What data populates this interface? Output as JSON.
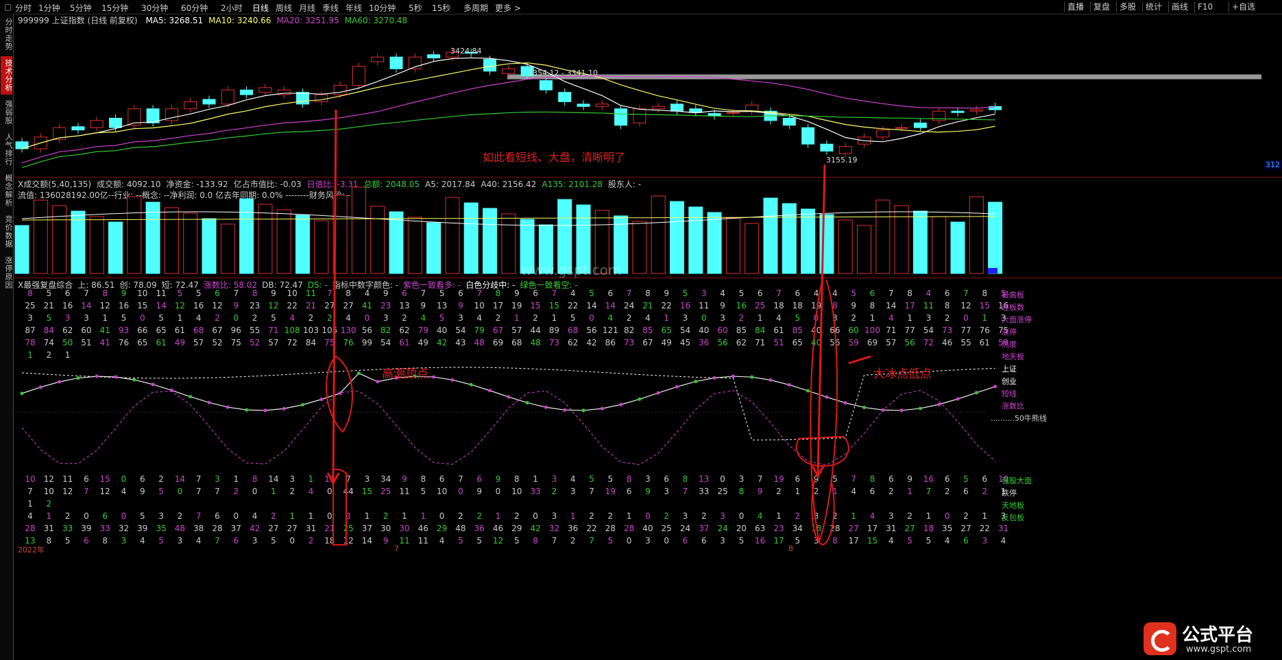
{
  "toolbar": {
    "timeframes": [
      "分时",
      "1分钟",
      "5分钟",
      "15分钟",
      "30分钟",
      "60分钟",
      "2小时",
      "日线",
      "周线",
      "月线",
      "季线",
      "年线",
      "10分钟",
      "5秒",
      "15秒",
      "多周期",
      "更多 >"
    ],
    "active": "日线",
    "right_buttons": [
      "直播",
      "复盘",
      "多股",
      "统计",
      "画线",
      "F10",
      "+自选"
    ]
  },
  "sidebar": {
    "tabs": [
      "分时走势",
      "技术分析",
      "强弱股",
      "人气排行",
      "概念解析",
      "竞价数据",
      "涨停原因"
    ],
    "active": "技术分析"
  },
  "main_chart": {
    "title": "999999 上证指数 (日线 前复权)",
    "ma": [
      {
        "label": "MA5: 3268.51",
        "color": "#ffffff"
      },
      {
        "label": "MA10: 3240.66",
        "color": "#ffff66"
      },
      {
        "label": "MA20: 3251.95",
        "color": "#cc44cc"
      },
      {
        "label": "MA60: 3270.48",
        "color": "#33cc33"
      }
    ],
    "annotations": {
      "high": "3424.84",
      "mid": "3354.12 - 3341.10",
      "low": "3155.19",
      "note": "如此看短线、大盘，清晰明了",
      "right_tag": "312"
    }
  },
  "volume_chart": {
    "line1": [
      {
        "text": "X成交额(5,40,135)",
        "color": "#cccccc"
      },
      {
        "text": "成交额: 4092.10",
        "color": "#cccccc"
      },
      {
        "text": "净资金: -133.92",
        "color": "#cccccc"
      },
      {
        "text": "亿占市值比: -0.03",
        "color": "#cccccc"
      },
      {
        "text": "日值比: -3.31",
        "color": "#cc44cc"
      },
      {
        "text": "总额: 2048.05",
        "color": "#33cc33"
      },
      {
        "text": "A5: 2017.84",
        "color": "#cccccc"
      },
      {
        "text": "A40: 2156.42",
        "color": "#cccccc"
      },
      {
        "text": "A135: 2101.28",
        "color": "#33cc33"
      },
      {
        "text": "股东人: -",
        "color": "#cccccc"
      }
    ],
    "line2": "流值: 136028192.00亿--行业: --概念: --净利润: 0.0 亿去年同期: 0.0% --------财务风险: -",
    "watermark": "www.gspt.com"
  },
  "indicator": {
    "legend": [
      {
        "text": "X最强复盘综合",
        "color": "#cccccc"
      },
      {
        "text": "上: 86.51",
        "color": "#cccccc"
      },
      {
        "text": "创: 78.09",
        "color": "#cccccc"
      },
      {
        "text": "短: 72.47",
        "color": "#cccccc"
      },
      {
        "text": "涨数比: 58.02",
        "color": "#cc44cc"
      },
      {
        "text": "DB: 72.47",
        "color": "#cccccc"
      },
      {
        "text": "DS: -",
        "color": "#33cc33"
      },
      {
        "text": "指标中数字颜色: -",
        "color": "#cccccc"
      },
      {
        "text": "紫色一致看多: -",
        "color": "#cc44cc"
      },
      {
        "text": "白色分歧中: -",
        "color": "#ffffff"
      },
      {
        "text": "绿色一致看空: -",
        "color": "#33cc33"
      }
    ],
    "top_rows": [
      {
        "label": "最高板",
        "color": "#cc44cc",
        "values": [
          "8",
          "5",
          "6",
          "7",
          "8",
          "9",
          "10",
          "11",
          "5",
          "5",
          "6",
          "7",
          "8",
          "9",
          "10",
          "11",
          "7",
          "8",
          "4",
          "9",
          "6",
          "7",
          "5",
          "6",
          "7",
          "8",
          "9",
          "6",
          "7",
          "4",
          "5",
          "6",
          "7",
          "8",
          "9",
          "5",
          "3",
          "4",
          "5",
          "6",
          "7",
          "6",
          "4",
          "4",
          "5",
          "6",
          "7",
          "8",
          "4",
          "6",
          "7",
          "8",
          "5"
        ]
      },
      {
        "label": "连板数",
        "color": "#cc44cc",
        "values": [
          "25",
          "21",
          "16",
          "14",
          "12",
          "16",
          "15",
          "14",
          "12",
          "16",
          "12",
          "9",
          "23",
          "12",
          "22",
          "21",
          "27",
          "27",
          "41",
          "23",
          "13",
          "9",
          "13",
          "9",
          "10",
          "17",
          "19",
          "15",
          "15",
          "22",
          "14",
          "14",
          "24",
          "21",
          "22",
          "16",
          "11",
          "9",
          "16",
          "25",
          "18",
          "18",
          "19",
          "8",
          "9",
          "8",
          "14",
          "17",
          "11",
          "8",
          "12",
          "15",
          "16"
        ]
      },
      {
        "label": "大面涨停",
        "color": "#cc44cc",
        "values": [
          "3",
          "5",
          "3",
          "3",
          "1",
          "5",
          "0",
          "5",
          "1",
          "4",
          "2",
          "0",
          "2",
          "5",
          "4",
          "2",
          "2",
          "4",
          "0",
          "3",
          "2",
          "4",
          "5",
          "3",
          "4",
          "2",
          "1",
          "2",
          "1",
          "5",
          "0",
          "4",
          "2",
          "4",
          "1",
          "3",
          "0",
          "3",
          "2",
          "1",
          "4",
          "5",
          "0",
          "3",
          "2",
          "1",
          "4",
          "1",
          "3",
          "2",
          "0",
          "1",
          "3"
        ]
      },
      {
        "label": "涨停",
        "color": "#cc44cc",
        "values": [
          "87",
          "84",
          "62",
          "60",
          "41",
          "93",
          "66",
          "65",
          "61",
          "68",
          "67",
          "96",
          "55",
          "71",
          "108",
          "103",
          "105",
          "130",
          "56",
          "82",
          "62",
          "79",
          "40",
          "54",
          "79",
          "67",
          "57",
          "44",
          "89",
          "68",
          "56",
          "121",
          "82",
          "85",
          "65",
          "54",
          "40",
          "60",
          "85",
          "84",
          "61",
          "85",
          "40",
          "66",
          "60",
          "100",
          "71",
          "77",
          "54",
          "73",
          "77",
          "76",
          "75"
        ]
      },
      {
        "label": "热度",
        "color": "#cc44cc",
        "values": [
          "78",
          "74",
          "50",
          "51",
          "41",
          "76",
          "65",
          "61",
          "49",
          "57",
          "52",
          "75",
          "52",
          "57",
          "72",
          "84",
          "75",
          "76",
          "99",
          "54",
          "61",
          "49",
          "42",
          "43",
          "48",
          "69",
          "68",
          "48",
          "73",
          "62",
          "42",
          "86",
          "73",
          "67",
          "49",
          "45",
          "36",
          "56",
          "62",
          "71",
          "51",
          "65",
          "40",
          "56",
          "59",
          "69",
          "57",
          "56",
          "72",
          "46",
          "55",
          "61",
          "59"
        ]
      },
      {
        "label": "地天板",
        "color": "#cc44cc",
        "values": [
          "1",
          "2",
          "1",
          "",
          "",
          "",
          "",
          "",
          "",
          "",
          "",
          "",
          "",
          "",
          "",
          "",
          "",
          "",
          "",
          "",
          "",
          "",
          "",
          "",
          "",
          "",
          "",
          "",
          "",
          "",
          "",
          "",
          "",
          "",
          "",
          "",
          "",
          "",
          "",
          "",
          "",
          "",
          "",
          "",
          "",
          "",
          "",
          "",
          "",
          "",
          "",
          "",
          ""
        ]
      }
    ],
    "line_labels": [
      {
        "text": "上证",
        "color": "#ffffff"
      },
      {
        "text": "创业",
        "color": "#ffffff"
      },
      {
        "text": "短线",
        "color": "#cc44cc"
      },
      {
        "text": "涨数比",
        "color": "#cc44cc"
      },
      {
        "text": "..........50牛熊线",
        "color": "#cccccc"
      }
    ],
    "annotation_high": "高潮顶点",
    "annotation_low": "大冰点低点",
    "bottom_rows": [
      {
        "label": "强股大面",
        "color": "#33cc33",
        "values": [
          "10",
          "12",
          "11",
          "6",
          "15",
          "0",
          "6",
          "2",
          "14",
          "7",
          "3",
          "1",
          "8",
          "14",
          "3",
          "1",
          "11",
          "7",
          "3",
          "34",
          "9",
          "8",
          "6",
          "7",
          "6",
          "9",
          "8",
          "1",
          "3",
          "4",
          "5",
          "5",
          "8",
          "3",
          "6",
          "8",
          "13",
          "0",
          "3",
          "7",
          "19",
          "6",
          "9",
          "5",
          "7",
          "8",
          "6",
          "9",
          "16",
          "6",
          "5",
          "6",
          "10"
        ]
      },
      {
        "label": "跌停",
        "color": "#cccccc",
        "values": [
          "7",
          "10",
          "12",
          "7",
          "12",
          "4",
          "9",
          "5",
          "0",
          "7",
          "7",
          "2",
          "0",
          "1",
          "2",
          "4",
          "0",
          "44",
          "15",
          "25",
          "11",
          "5",
          "10",
          "0",
          "9",
          "0",
          "10",
          "33",
          "2",
          "3",
          "7",
          "19",
          "6",
          "9",
          "3",
          "7",
          "33",
          "25",
          "8",
          "9",
          "2",
          "1",
          "2",
          "1",
          "4",
          "6",
          "2",
          "1",
          "7",
          "2",
          "6",
          "2",
          "1"
        ]
      },
      {
        "label": "天地板",
        "color": "#33cc33",
        "values": [
          "1",
          "2",
          "",
          "",
          "",
          "",
          "",
          "",
          "",
          "",
          "",
          "",
          "",
          "",
          "",
          "",
          "",
          "",
          "",
          "",
          "",
          "",
          "",
          "",
          "",
          "",
          "",
          "",
          "",
          "",
          "",
          "",
          "",
          "",
          "",
          "",
          "",
          "",
          "",
          "",
          "",
          "",
          "",
          "",
          "",
          "",
          "",
          "",
          "",
          "",
          "",
          "",
          ""
        ]
      },
      {
        "label": "反包板",
        "color": "#33cc33",
        "values": [
          "4",
          "1",
          "2",
          "0",
          "6",
          "0",
          "5",
          "3",
          "2",
          "7",
          "6",
          "0",
          "4",
          "2",
          "1",
          "1",
          "0",
          "3",
          "1",
          "2",
          "1",
          "1",
          "0",
          "2",
          "2",
          "1",
          "2",
          "0",
          "3",
          "1",
          "2",
          "2",
          "1",
          "0",
          "2",
          "3",
          "2",
          "3",
          "0",
          "4",
          "1",
          "2",
          "3",
          "2",
          "1",
          "4",
          "3",
          "2",
          "1",
          "0",
          "2",
          "1",
          "3"
        ]
      },
      {
        "label": "",
        "color": "#33cc33",
        "values": [
          "28",
          "31",
          "33",
          "39",
          "33",
          "32",
          "39",
          "35",
          "48",
          "38",
          "28",
          "37",
          "42",
          "27",
          "27",
          "31",
          "21",
          "25",
          "37",
          "30",
          "30",
          "46",
          "29",
          "48",
          "36",
          "46",
          "29",
          "42",
          "32",
          "36",
          "22",
          "28",
          "28",
          "40",
          "25",
          "24",
          "37",
          "24",
          "20",
          "63",
          "23",
          "34",
          "18",
          "28",
          "27",
          "17",
          "31",
          "27",
          "18",
          "35",
          "27",
          "22",
          "31"
        ]
      },
      {
        "label": "",
        "color": "#33cc33",
        "values": [
          "13",
          "8",
          "5",
          "6",
          "8",
          "3",
          "4",
          "5",
          "3",
          "4",
          "7",
          "6",
          "3",
          "5",
          "0",
          "2",
          "18",
          "12",
          "14",
          "9",
          "11",
          "11",
          "4",
          "5",
          "5",
          "12",
          "5",
          "8",
          "7",
          "2",
          "7",
          "5",
          "0",
          "3",
          "0",
          "6",
          "6",
          "3",
          "5",
          "16",
          "17",
          "5",
          "3",
          "8",
          "17",
          "15",
          "4",
          "5",
          "5",
          "4",
          "6",
          "3",
          "4"
        ]
      }
    ],
    "dates": [
      "2022年",
      "7",
      "8"
    ],
    "logo_text": "公式平台",
    "logo_url": "www.gspt.com"
  },
  "chart_data": {
    "type": "line",
    "title": "999999 上证指数 (日线 前复权)",
    "candles": [
      {
        "o": 3200,
        "c": 3185
      },
      {
        "o": 3185,
        "c": 3210
      },
      {
        "o": 3205,
        "c": 3230
      },
      {
        "o": 3232,
        "c": 3225
      },
      {
        "o": 3230,
        "c": 3245
      },
      {
        "o": 3250,
        "c": 3230
      },
      {
        "o": 3235,
        "c": 3270
      },
      {
        "o": 3270,
        "c": 3240
      },
      {
        "o": 3245,
        "c": 3270
      },
      {
        "o": 3270,
        "c": 3285
      },
      {
        "o": 3290,
        "c": 3280
      },
      {
        "o": 3280,
        "c": 3310
      },
      {
        "o": 3310,
        "c": 3300
      },
      {
        "o": 3305,
        "c": 3315
      },
      {
        "o": 3300,
        "c": 3310
      },
      {
        "o": 3305,
        "c": 3280
      },
      {
        "o": 3285,
        "c": 3300
      },
      {
        "o": 3300,
        "c": 3320
      },
      {
        "o": 3320,
        "c": 3360
      },
      {
        "o": 3370,
        "c": 3380
      },
      {
        "o": 3380,
        "c": 3355
      },
      {
        "o": 3355,
        "c": 3380
      },
      {
        "o": 3385,
        "c": 3378
      },
      {
        "o": 3380,
        "c": 3390
      },
      {
        "o": 3390,
        "c": 3388
      },
      {
        "o": 3375,
        "c": 3350
      },
      {
        "o": 3345,
        "c": 3355
      },
      {
        "o": 3360,
        "c": 3340
      },
      {
        "o": 3330,
        "c": 3310
      },
      {
        "o": 3305,
        "c": 3285
      },
      {
        "o": 3280,
        "c": 3275
      },
      {
        "o": 3275,
        "c": 3280
      },
      {
        "o": 3270,
        "c": 3235
      },
      {
        "o": 3240,
        "c": 3270
      },
      {
        "o": 3270,
        "c": 3275
      },
      {
        "o": 3280,
        "c": 3265
      },
      {
        "o": 3270,
        "c": 3262
      },
      {
        "o": 3260,
        "c": 3255
      },
      {
        "o": 3260,
        "c": 3262
      },
      {
        "o": 3265,
        "c": 3278
      },
      {
        "o": 3265,
        "c": 3245
      },
      {
        "o": 3250,
        "c": 3235
      },
      {
        "o": 3230,
        "c": 3195
      },
      {
        "o": 3195,
        "c": 3180
      },
      {
        "o": 3175,
        "c": 3190
      },
      {
        "o": 3195,
        "c": 3210
      },
      {
        "o": 3210,
        "c": 3225
      },
      {
        "o": 3230,
        "c": 3230
      },
      {
        "o": 3240,
        "c": 3230
      },
      {
        "o": 3245,
        "c": 3265
      },
      {
        "o": 3265,
        "c": 3262
      },
      {
        "o": 3265,
        "c": 3268
      },
      {
        "o": 3275,
        "c": 3268
      }
    ],
    "ylim": [
      3140,
      3440
    ]
  }
}
